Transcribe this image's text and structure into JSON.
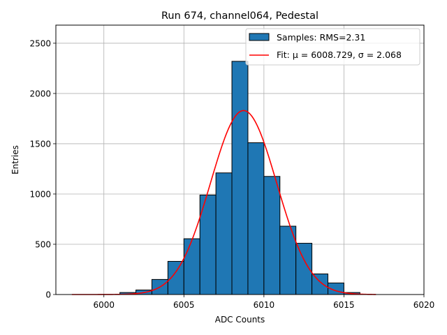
{
  "chart_data": {
    "type": "bar",
    "title": "Run 674, channel064, Pedestal",
    "xlabel": "ADC Counts",
    "ylabel": "Entries",
    "xlim": [
      5997,
      6020
    ],
    "ylim": [
      0,
      2680
    ],
    "xticks": [
      6000,
      6005,
      6010,
      6015,
      6020
    ],
    "yticks": [
      0,
      500,
      1000,
      1500,
      2000,
      2500
    ],
    "grid": true,
    "legend_position": "top-right",
    "bins": [
      {
        "x0": 6001,
        "x1": 6002,
        "count": 20
      },
      {
        "x0": 6002,
        "x1": 6003,
        "count": 45
      },
      {
        "x0": 6003,
        "x1": 6004,
        "count": 150
      },
      {
        "x0": 6004,
        "x1": 6005,
        "count": 330
      },
      {
        "x0": 6005,
        "x1": 6006,
        "count": 555
      },
      {
        "x0": 6006,
        "x1": 6007,
        "count": 990
      },
      {
        "x0": 6007,
        "x1": 6008,
        "count": 1210
      },
      {
        "x0": 6008,
        "x1": 6009,
        "count": 2320
      },
      {
        "x0": 6009,
        "x1": 6010,
        "count": 1510
      },
      {
        "x0": 6010,
        "x1": 6011,
        "count": 1175
      },
      {
        "x0": 6011,
        "x1": 6012,
        "count": 680
      },
      {
        "x0": 6012,
        "x1": 6013,
        "count": 510
      },
      {
        "x0": 6013,
        "x1": 6014,
        "count": 205
      },
      {
        "x0": 6014,
        "x1": 6015,
        "count": 115
      },
      {
        "x0": 6015,
        "x1": 6016,
        "count": 20
      }
    ],
    "fit": {
      "mu": 6008.729,
      "sigma": 2.068,
      "amplitude": 1830,
      "x_range": [
        5998,
        6017
      ]
    },
    "series": [
      {
        "name": "Samples: RMS=2.31",
        "type": "histogram",
        "color": "#1f77b4"
      },
      {
        "name": "Fit: μ = 6008.729, σ = 2.068",
        "type": "line",
        "color": "#ff0000"
      }
    ]
  }
}
